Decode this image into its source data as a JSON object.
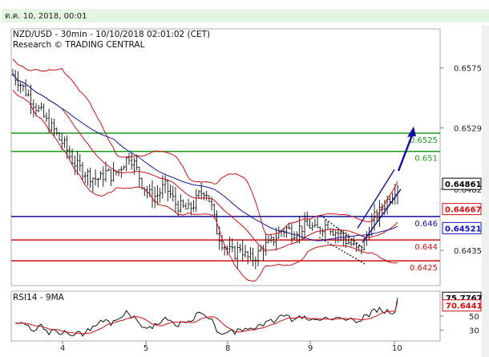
{
  "header": {
    "date_label": "ต.ค. 10, 2018, 00:01"
  },
  "chart_data": {
    "type": "candlestick",
    "title": "NZD/USD - 30min - 10/10/2018 02:01:02 (CET)",
    "subtitle": "Research © TRADING CENTRAL",
    "x_ticks": [
      "4",
      "5",
      "8",
      "9",
      "10"
    ],
    "y_ticks": [
      0.6575,
      0.6529,
      0.6482,
      0.6435
    ],
    "y_tick_labels": [
      "0.6575",
      "0.6529",
      "0.6482",
      "0.6435"
    ],
    "ylim": [
      0.6408,
      0.6605
    ],
    "levels": [
      {
        "label": "0.6525",
        "value": 0.6525,
        "color": "#1a9a1a"
      },
      {
        "label": "0.651",
        "value": 0.6511,
        "color": "#1a9a1a"
      },
      {
        "label": "0.646",
        "value": 0.6461,
        "color": "#1010a0"
      },
      {
        "label": "0.644",
        "value": 0.6443,
        "color": "#d01010"
      },
      {
        "label": "0.6425",
        "value": 0.6427,
        "color": "#d01010"
      }
    ],
    "price_tags": [
      {
        "label": "0.64861",
        "value": 0.64861,
        "bg": "#ffffff",
        "fg": "#000000",
        "border": "#000000"
      },
      {
        "label": "0.64667",
        "value": 0.64667,
        "bg": "#ffffff",
        "fg": "#d01010",
        "border": "#d01010"
      },
      {
        "label": "0.64521",
        "value": 0.64521,
        "bg": "#ffffff",
        "fg": "#1010c0",
        "border": "#1010c0"
      }
    ],
    "close_series": [
      0.657,
      0.6565,
      0.6558,
      0.6552,
      0.6545,
      0.654,
      0.6532,
      0.6528,
      0.652,
      0.6515,
      0.6505,
      0.65,
      0.6496,
      0.6493,
      0.649,
      0.649,
      0.6495,
      0.6492,
      0.6496,
      0.6502,
      0.6508,
      0.65,
      0.6488,
      0.648,
      0.6476,
      0.6478,
      0.6485,
      0.6478,
      0.647,
      0.6468,
      0.6466,
      0.647,
      0.6478,
      0.6482,
      0.647,
      0.645,
      0.644,
      0.6435,
      0.6432,
      0.6438,
      0.643,
      0.6428,
      0.6432,
      0.6438,
      0.644,
      0.6445,
      0.645,
      0.6452,
      0.6448,
      0.6452,
      0.6453,
      0.6454,
      0.645,
      0.6453,
      0.6455,
      0.645,
      0.6448,
      0.6443,
      0.644,
      0.6435,
      0.6438,
      0.645,
      0.646,
      0.6465,
      0.6472,
      0.6478,
      0.6486
    ],
    "close_ylim": [
      0.642,
      0.658
    ],
    "arrow_target": 0.6527,
    "indicator": {
      "title": "RSI14 - 9MA",
      "ylim": [
        15,
        85
      ],
      "y_ticks": [
        50,
        30
      ],
      "rsi_label": "75.7767",
      "ma_label": "70.6441",
      "rsi_color": "#111111",
      "ma_color": "#d01010"
    },
    "colors": {
      "bar": "#111111",
      "bollinger": "#d01010",
      "ma_fast": "#d01010",
      "ma_slow": "#1a1aa0",
      "channel": "#1010a0"
    }
  }
}
